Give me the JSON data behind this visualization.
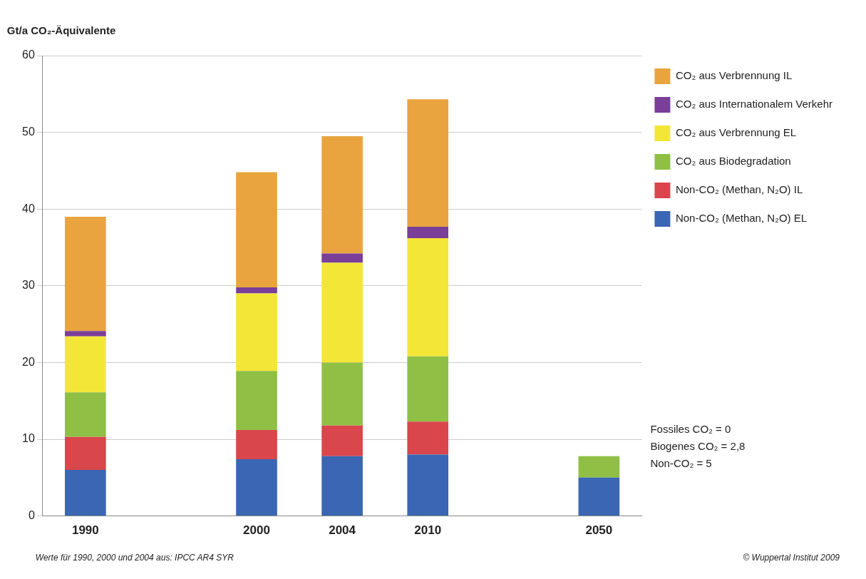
{
  "chart_data": {
    "type": "bar",
    "stacked": true,
    "ylabel": "Gt/a CO₂-Äquivalente",
    "categories": [
      "1990",
      null,
      "2000",
      "2004",
      "2010",
      null,
      "2050"
    ],
    "ylim": [
      0,
      60
    ],
    "yticks": [
      0,
      10,
      20,
      30,
      40,
      50,
      60
    ],
    "grid": "y",
    "legend": "top right",
    "series": [
      {
        "name": "Non-CO₂ (Methan, N₂O) EL",
        "color": "#3a66b4",
        "values": [
          6.0,
          null,
          7.4,
          7.8,
          8.0,
          null,
          5
        ]
      },
      {
        "name": "Non-CO₂ (Methan, N₂O) IL",
        "color": "#d9464b",
        "values": [
          4.3,
          null,
          3.8,
          4.0,
          4.3,
          null,
          null
        ]
      },
      {
        "name": "CO₂ aus Biodegradation",
        "color": "#8fc045",
        "values": [
          5.8,
          null,
          7.7,
          8.2,
          8.5,
          null,
          2.8
        ]
      },
      {
        "name": "CO₂ aus Verbrennung EL",
        "color": "#f4e637",
        "values": [
          7.3,
          null,
          10.1,
          13.0,
          15.4,
          null,
          null
        ]
      },
      {
        "name": "CO₂ aus Internationalem Verkehr",
        "color": "#7a3f98",
        "values": [
          0.7,
          null,
          0.8,
          1.2,
          1.5,
          null,
          null
        ]
      },
      {
        "name": "CO₂ aus Verbrennung IL",
        "color": "#e9a43f",
        "values": [
          14.9,
          null,
          15.0,
          15.3,
          16.6,
          null,
          0
        ]
      }
    ],
    "annotations": [
      "Fossiles CO₂ = 0",
      "Biogenes CO₂ = 2,8",
      "Non-CO₂ = 5",
      "Werte für 1990, 2000 und 2004 aus: IPCC AR4 SYR",
      "© Wuppertal Institut 2009"
    ]
  }
}
